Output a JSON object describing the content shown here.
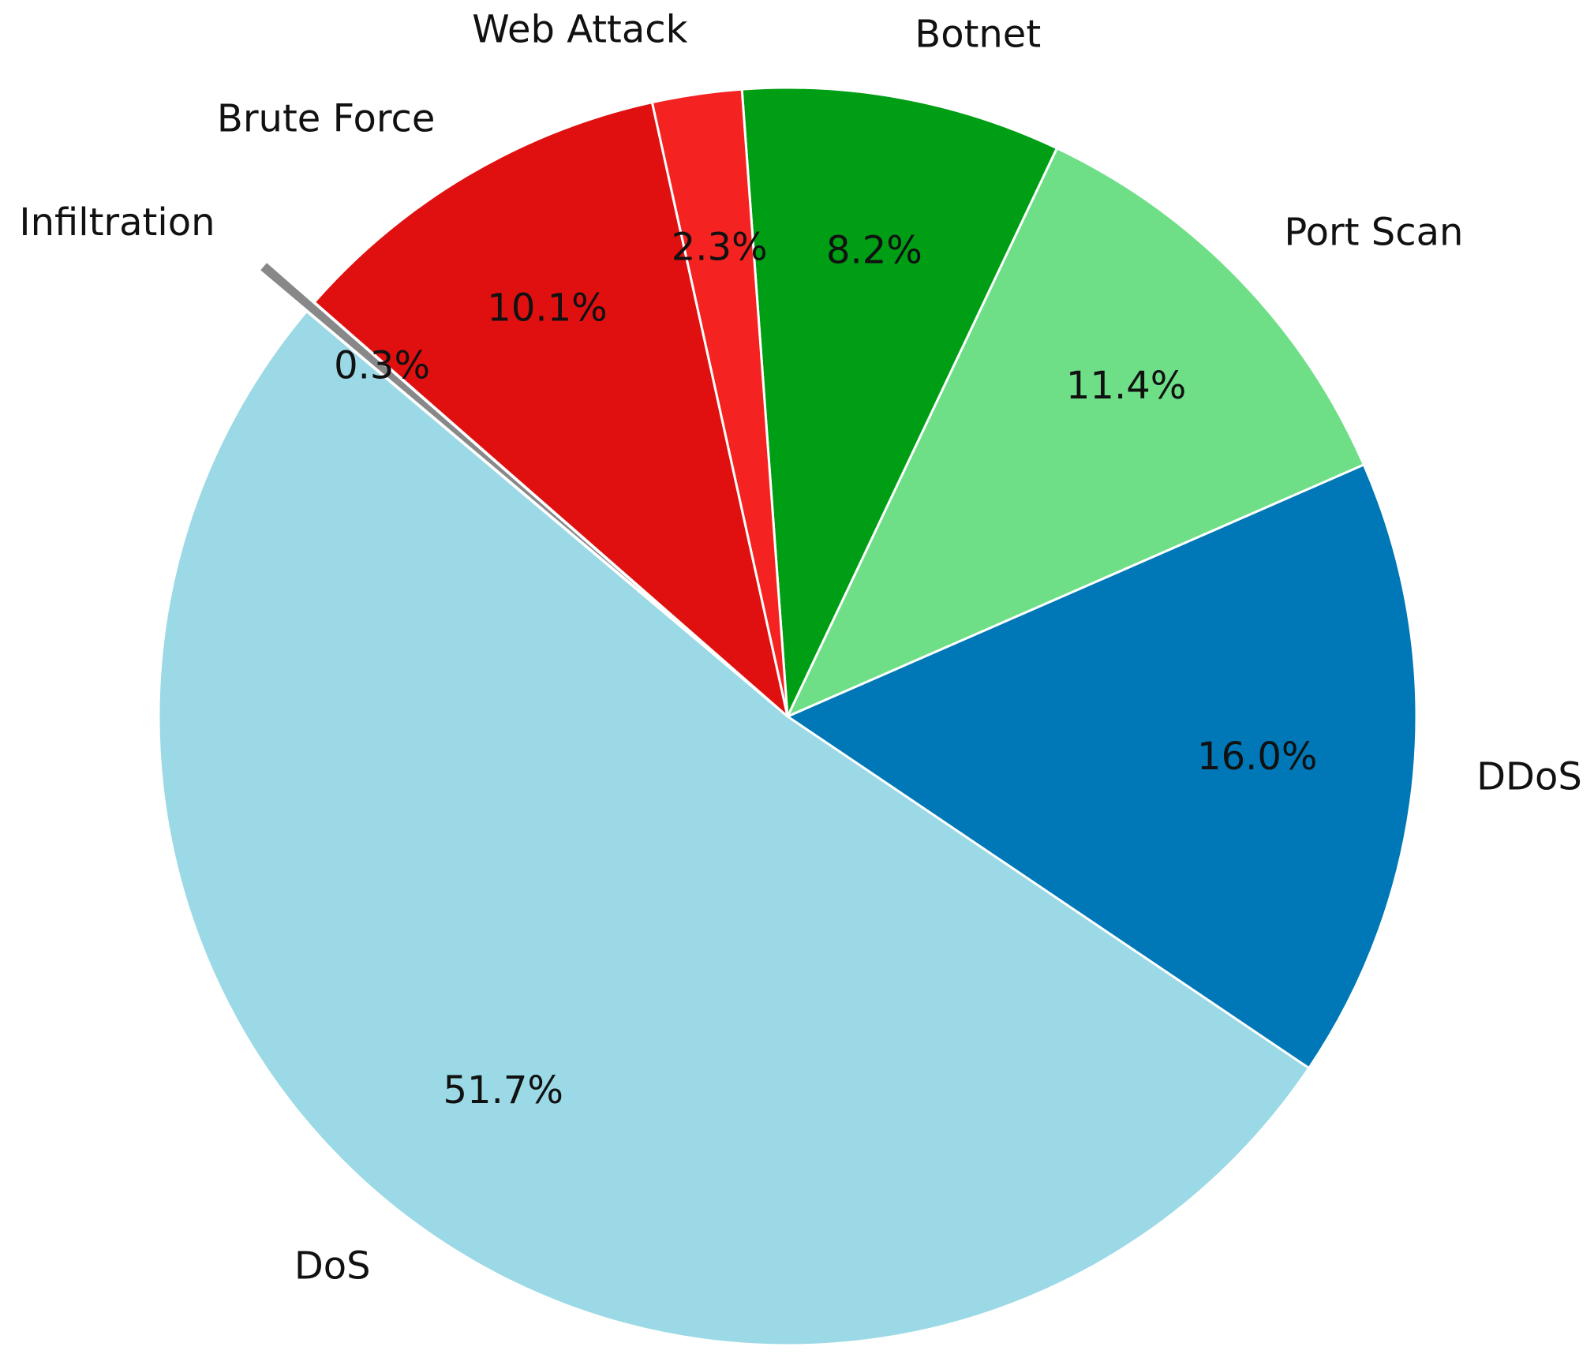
{
  "chart_data": {
    "type": "pie",
    "categories": [
      "DDoS",
      "Port Scan",
      "Botnet",
      "Web Attack",
      "Brute Force",
      "Infiltration",
      "DoS"
    ],
    "values": [
      16.0,
      11.4,
      8.2,
      2.3,
      10.1,
      0.3,
      51.7
    ],
    "value_labels": [
      "16.0%",
      "11.4%",
      "8.2%",
      "2.3%",
      "10.1%",
      "0.3%",
      "51.7%"
    ],
    "colors": [
      "#0077b6",
      "#6fdf87",
      "#009e14",
      "#f52222",
      "#e01010",
      "#888888",
      "#9ad9e5"
    ]
  }
}
